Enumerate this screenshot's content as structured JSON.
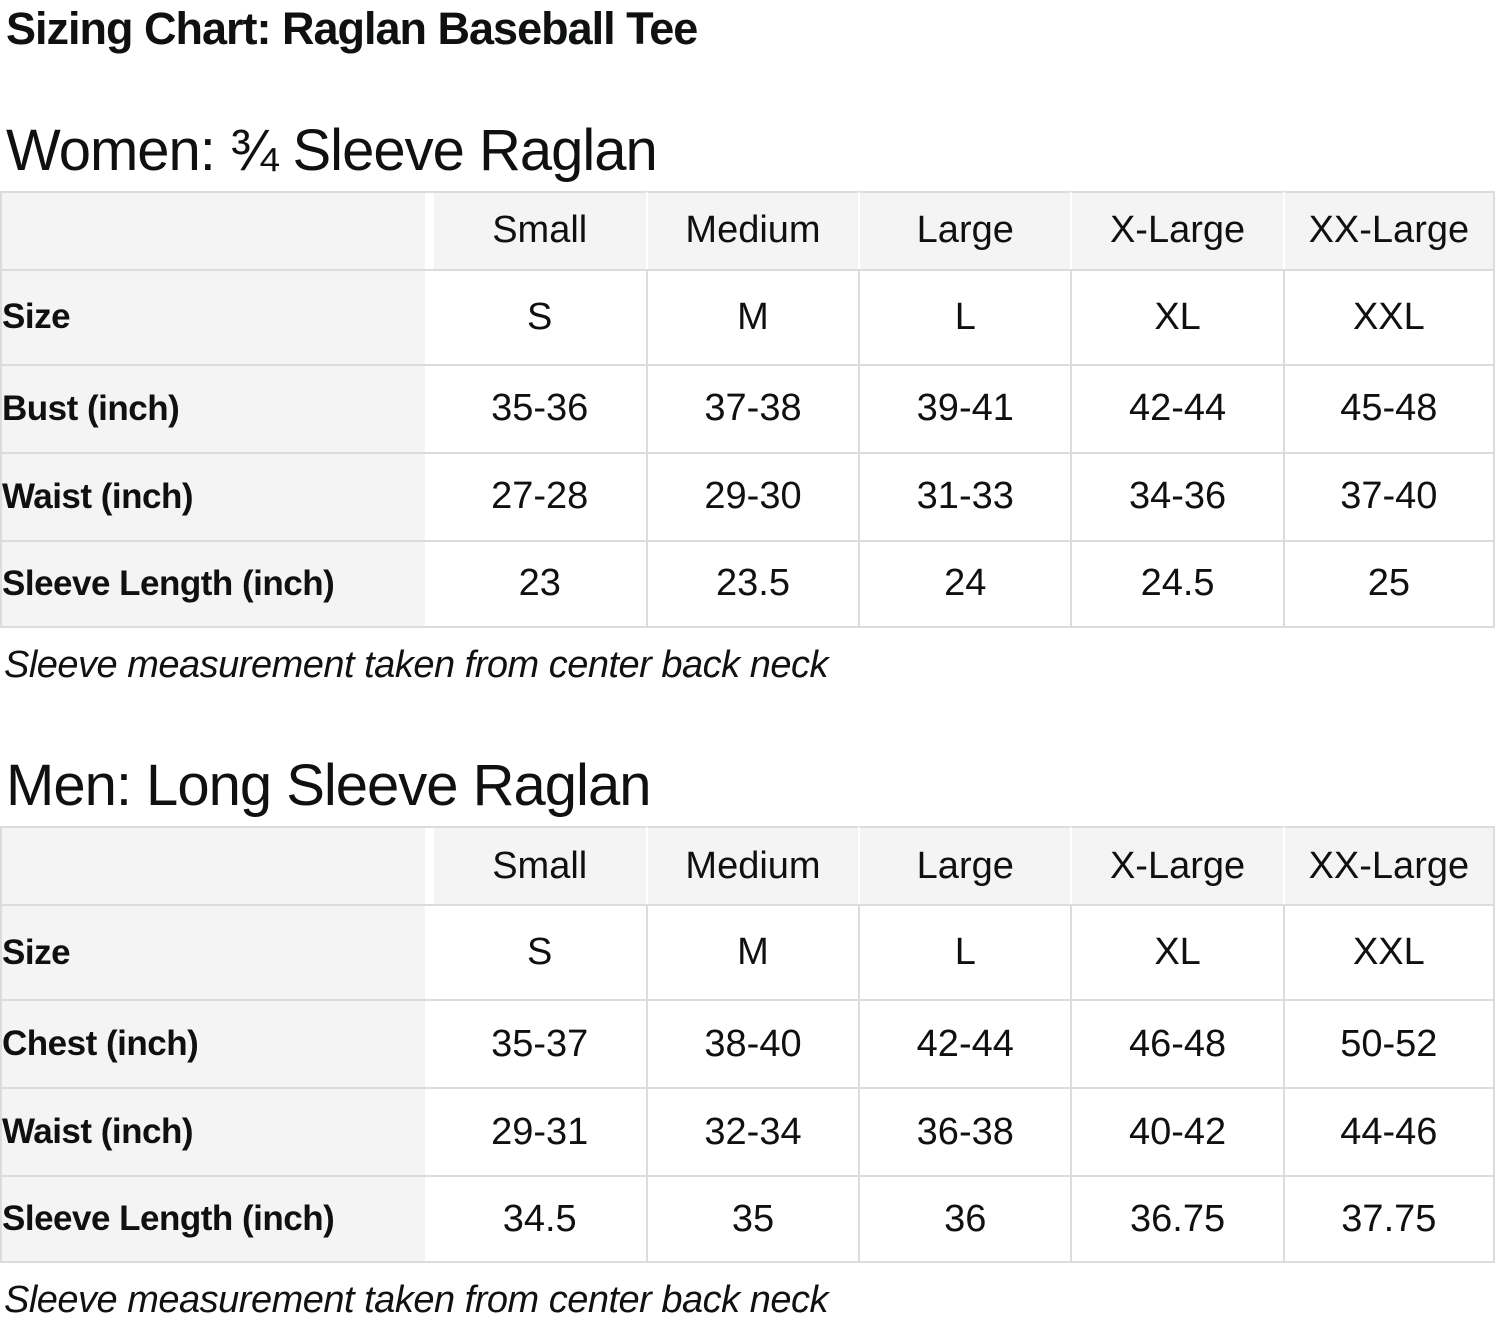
{
  "title": "Sizing Chart: Raglan Baseball Tee",
  "colors": {
    "cell_gray": "#f4f4f4",
    "border_gray": "#dcdcdc",
    "text": "#0f1111"
  },
  "sections": [
    {
      "heading": "Women: ¾ Sleeve Raglan",
      "note": "Sleeve measurement taken from center back neck",
      "table": {
        "columns": [
          "",
          "Small",
          "Medium",
          "Large",
          "X-Large",
          "XX-Large"
        ],
        "rows": [
          {
            "label": "Size",
            "values": [
              "S",
              "M",
              "L",
              "XL",
              "XXL"
            ]
          },
          {
            "label": "Bust (inch)",
            "values": [
              "35-36",
              "37-38",
              "39-41",
              "42-44",
              "45-48"
            ]
          },
          {
            "label": "Waist (inch)",
            "values": [
              "27-28",
              "29-30",
              "31-33",
              "34-36",
              "37-40"
            ]
          },
          {
            "label": "Sleeve Length (inch)",
            "values": [
              "23",
              "23.5",
              "24",
              "24.5",
              "25"
            ]
          }
        ]
      }
    },
    {
      "heading": "Men: Long Sleeve Raglan",
      "note": "Sleeve measurement taken from center back neck",
      "table": {
        "columns": [
          "",
          "Small",
          "Medium",
          "Large",
          "X-Large",
          "XX-Large"
        ],
        "rows": [
          {
            "label": "Size",
            "values": [
              "S",
              "M",
              "L",
              "XL",
              "XXL"
            ]
          },
          {
            "label": "Chest (inch)",
            "values": [
              "35-37",
              "38-40",
              "42-44",
              "46-48",
              "50-52"
            ]
          },
          {
            "label": "Waist (inch)",
            "values": [
              "29-31",
              "32-34",
              "36-38",
              "40-42",
              "44-46"
            ]
          },
          {
            "label": "Sleeve Length (inch)",
            "values": [
              "34.5",
              "35",
              "36",
              "36.75",
              "37.75"
            ]
          }
        ]
      }
    }
  ]
}
